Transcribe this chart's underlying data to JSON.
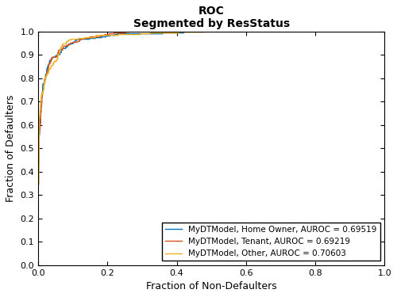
{
  "title_line1": "ROC",
  "title_line2": "Segmented by ResStatus",
  "xlabel": "Fraction of Non-Defaulters",
  "ylabel": "Fraction of Defaulters",
  "xlim": [
    0,
    1
  ],
  "ylim": [
    0,
    1
  ],
  "xticks": [
    0,
    0.2,
    0.4,
    0.6,
    0.8,
    1.0
  ],
  "yticks": [
    0,
    0.1,
    0.2,
    0.3,
    0.4,
    0.5,
    0.6,
    0.7,
    0.8,
    0.9,
    1.0
  ],
  "lines": [
    {
      "label": "MyDTModel, Home Owner, AUROC = 0.69519",
      "color": "#0072BD",
      "auroc": 0.69519,
      "seed": 101
    },
    {
      "label": "MyDTModel, Tenant, AUROC = 0.69219",
      "color": "#D95319",
      "auroc": 0.69219,
      "seed": 202
    },
    {
      "label": "MyDTModel, Other, AUROC = 0.70603",
      "color": "#EDB120",
      "auroc": 0.70603,
      "seed": 303
    }
  ],
  "legend_loc": "lower right",
  "background_color": "#ffffff",
  "title_fontsize": 10,
  "label_fontsize": 9,
  "tick_fontsize": 8,
  "legend_fontsize": 7.5,
  "linewidth": 1.0
}
